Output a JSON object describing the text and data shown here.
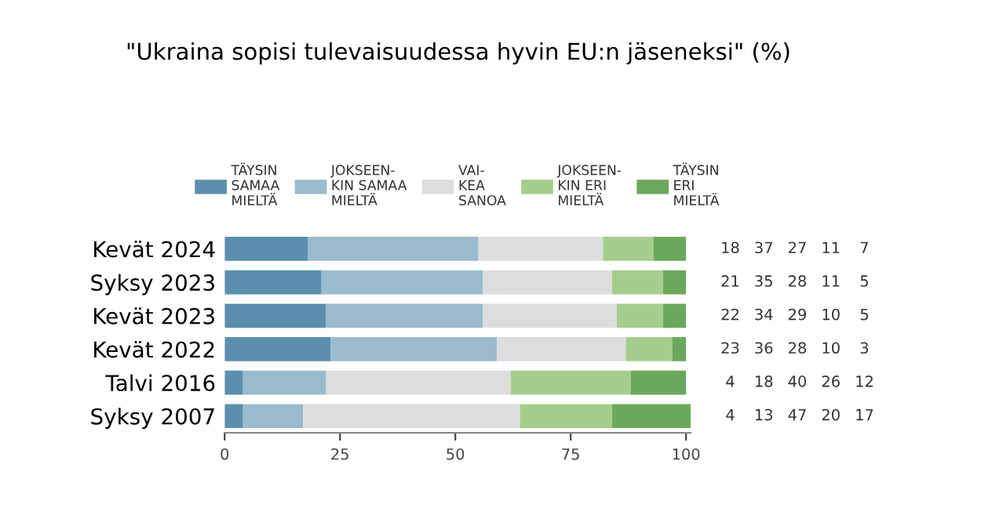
{
  "chart_data": {
    "type": "bar",
    "orientation": "horizontal",
    "stacked": true,
    "title": "\"Ukraina sopisi tulevaisuudessa hyvin EU:n jäseneksi\" (%)",
    "categories": [
      "Kevät 2024",
      "Syksy 2023",
      "Kevät 2023",
      "Kevät 2022",
      "Talvi 2016",
      "Syksy 2007"
    ],
    "series": [
      {
        "name": "TÄYSIN\nSAMAA\nMIELTÄ",
        "color": "#5b8fad",
        "values": [
          18,
          21,
          22,
          23,
          4,
          4
        ]
      },
      {
        "name": "JOKSEEN-\nKIN SAMAA\nMIELTÄ",
        "color": "#9abbcd",
        "values": [
          37,
          35,
          34,
          36,
          18,
          13
        ]
      },
      {
        "name": "VAI-\nKEA\nSANOA",
        "color": "#dddddd",
        "values": [
          27,
          28,
          29,
          28,
          40,
          47
        ]
      },
      {
        "name": "JOKSEEN-\nKIN ERI\nMIELTÄ",
        "color": "#a5cd8c",
        "values": [
          11,
          11,
          10,
          10,
          26,
          20
        ]
      },
      {
        "name": "TÄYSIN\nERI\nMIELTÄ",
        "color": "#6aa95b",
        "values": [
          7,
          5,
          5,
          3,
          12,
          17
        ]
      }
    ],
    "xlim": [
      0,
      101
    ],
    "xticks": [
      0,
      25,
      50,
      75,
      100
    ],
    "grid": false,
    "legend": "top",
    "data_labels": true
  }
}
